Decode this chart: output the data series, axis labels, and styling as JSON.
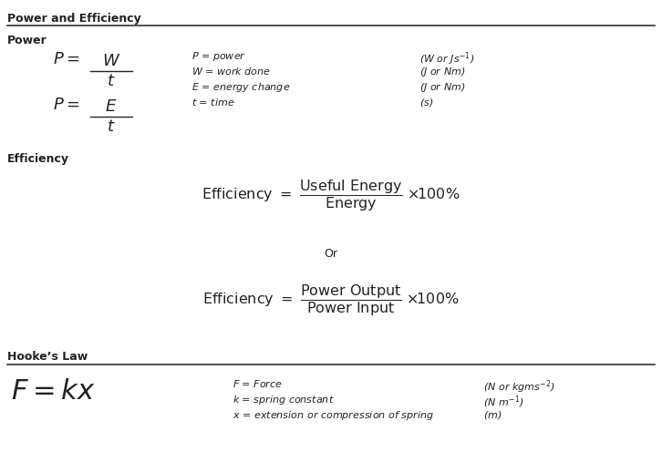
{
  "title": "Power and Efficiency",
  "section1_label": "Power",
  "section2_label": "Efficiency",
  "section3_label": "Hooke’s Law",
  "bg_color": "#ffffff",
  "text_color": "#222222",
  "figsize": [
    7.26,
    4.96
  ],
  "dpi": 100
}
